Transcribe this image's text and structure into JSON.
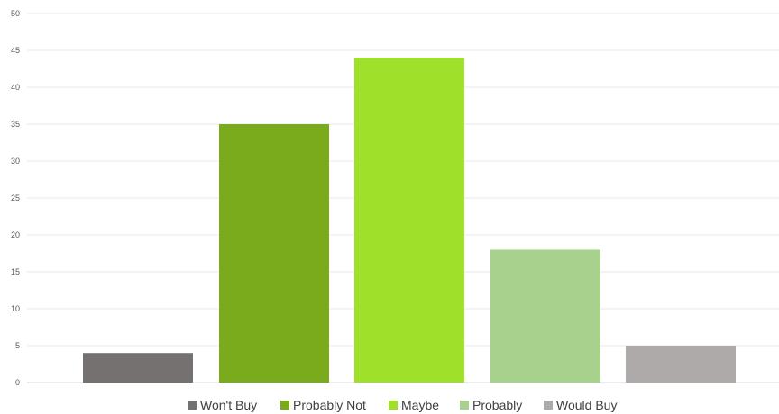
{
  "chart_data": {
    "type": "bar",
    "title": "",
    "xlabel": "",
    "ylabel": "",
    "categories": [
      "Won't Buy",
      "Probably Not",
      "Maybe",
      "Probably",
      "Would Buy"
    ],
    "values": [
      4,
      35,
      44,
      18,
      5
    ],
    "colors": [
      "#767171",
      "#7aab1d",
      "#9fe02a",
      "#a9d18e",
      "#aeaaaa"
    ],
    "ylim": [
      0,
      50
    ],
    "yticks": [
      0,
      5,
      10,
      15,
      20,
      25,
      30,
      35,
      40,
      45,
      50
    ],
    "grid": true,
    "legend_position": "bottom",
    "legend": [
      {
        "label": "Won't Buy",
        "color": "#767171"
      },
      {
        "label": "Probably Not",
        "color": "#7aab1d"
      },
      {
        "label": "Maybe",
        "color": "#9fe02a"
      },
      {
        "label": "Probably",
        "color": "#a9d18e"
      },
      {
        "label": "Would Buy",
        "color": "#aeaaaa"
      }
    ],
    "gridline_color": "#e8e8e8",
    "axis_color": "#d9d9d9"
  }
}
